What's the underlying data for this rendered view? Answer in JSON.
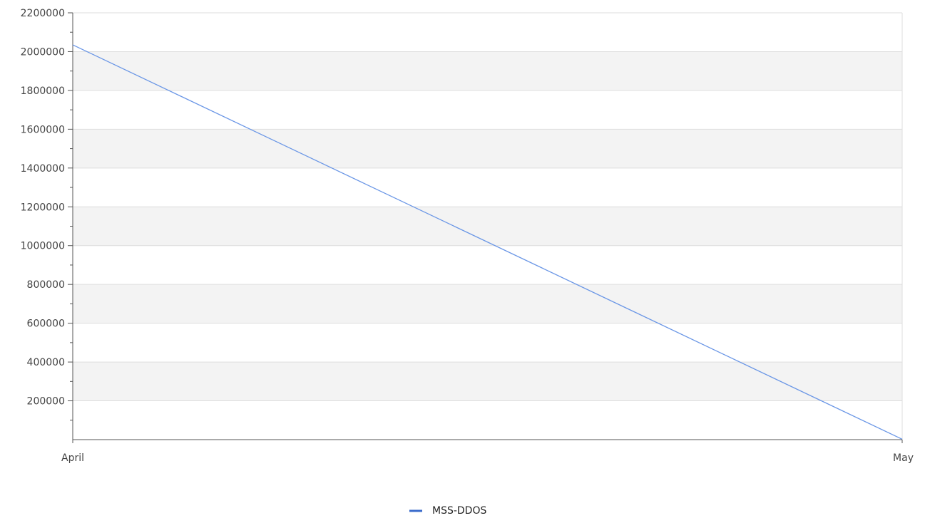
{
  "chart_data": {
    "type": "line",
    "categories": [
      "April",
      "May"
    ],
    "series": [
      {
        "name": "MSS-DDOS",
        "values": [
          2035000,
          2000
        ]
      }
    ],
    "ylim": [
      0,
      2200000
    ],
    "y_ticks": [
      200000,
      400000,
      600000,
      800000,
      1000000,
      1200000,
      1400000,
      1600000,
      1800000,
      2000000,
      2200000
    ],
    "y_tick_labels": [
      "200000",
      "400000",
      "600000",
      "800000",
      "1000000",
      "1200000",
      "1400000",
      "1600000",
      "1800000",
      "2000000",
      "2200000"
    ],
    "grid": true,
    "alternating_bands": true,
    "legend_position": "bottom",
    "colors": {
      "series": "#6a96e6",
      "legend_swatch": "#3a6bcb",
      "band": "#f3f3f3",
      "gridline": "#dddddd",
      "axis": "#555555"
    }
  }
}
